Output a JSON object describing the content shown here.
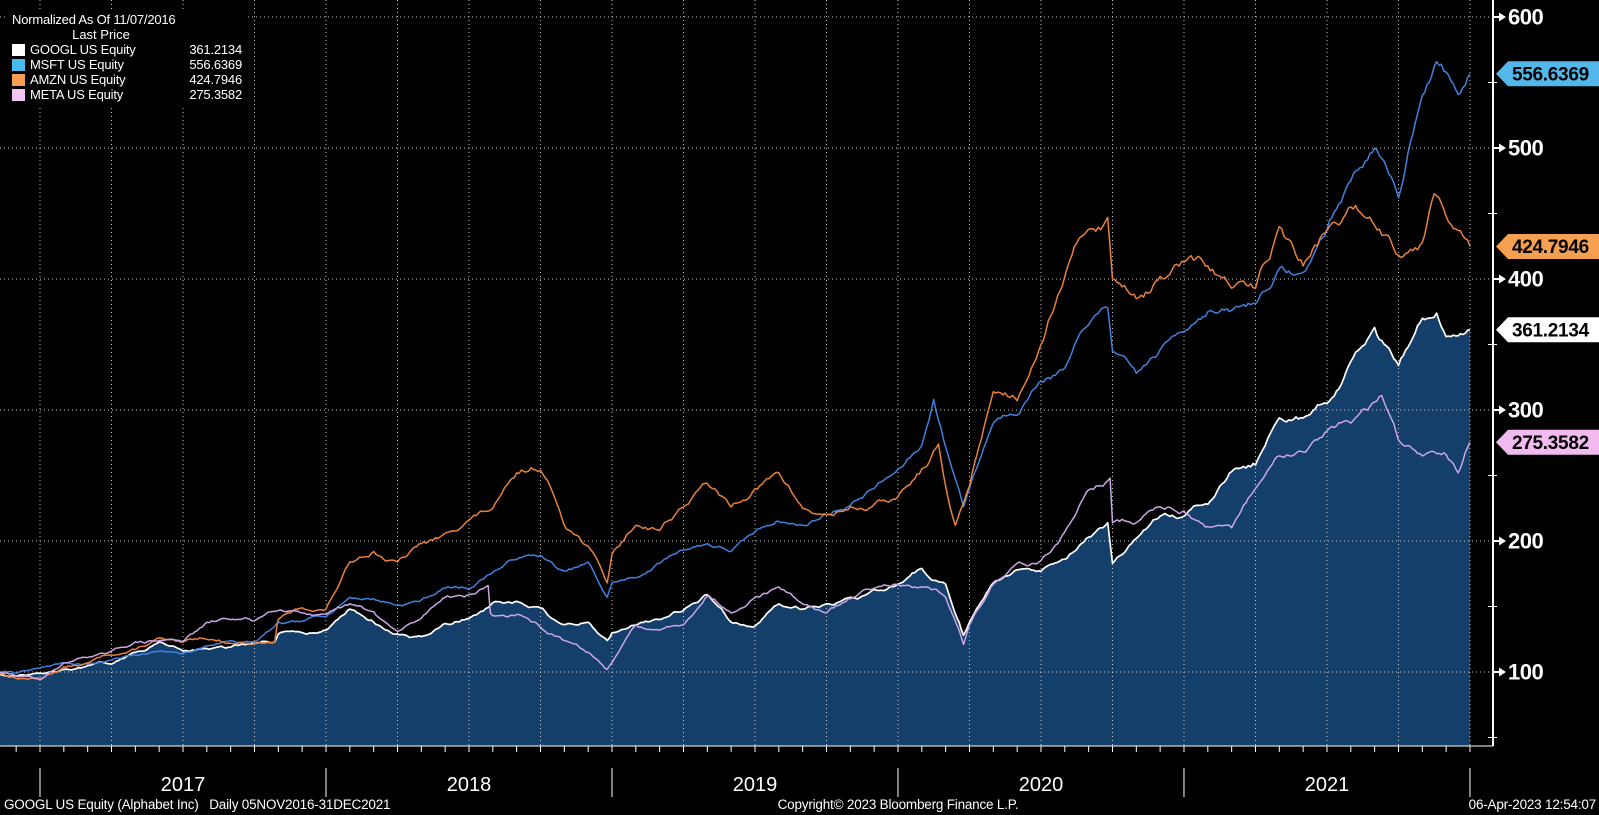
{
  "legend": {
    "title": "Normalized As Of 11/07/2016",
    "subtitle": "Last Price",
    "items": [
      {
        "name": "GOOGL US Equity",
        "value": "361.2134",
        "swatch": "#ffffff"
      },
      {
        "name": "MSFT US Equity",
        "value": "556.6369",
        "swatch": "#45bbee"
      },
      {
        "name": "AMZN US Equity",
        "value": "424.7946",
        "swatch": "#f59e53"
      },
      {
        "name": "META US Equity",
        "value": "275.3582",
        "swatch": "#f1c5f1"
      }
    ]
  },
  "footer": {
    "left": "GOOGL US Equity (Alphabet Inc)   Daily 05NOV2016-31DEC2021",
    "center": "Copyright© 2023 Bloomberg Finance L.P.",
    "right": "06-Apr-2023 12:54:07"
  },
  "chart_data": {
    "type": "line",
    "title": "Normalized As Of 11/07/2016 - Last Price",
    "x_unit": "months since 01NOV2016; data span 05NOV2016-31DEC2021",
    "x_axis": {
      "years": [
        "2017",
        "2018",
        "2019",
        "2020",
        "2021"
      ],
      "range": [
        "05NOV2016",
        "31DEC2021"
      ],
      "quarterly_gridlines": true
    },
    "y_axis": {
      "ticks": [
        600,
        500,
        400,
        300,
        200,
        100
      ],
      "minor_step": 50,
      "base": 100,
      "grid": "dotted"
    },
    "colors": {
      "background": "#000000",
      "grid": "#e8e8e8",
      "googl_fill": "#143f6a"
    },
    "series": [
      {
        "name": "GOOGL US Equity",
        "last": 361.2134,
        "last_label": "361.2134",
        "line_color": "#ffffff",
        "badge_color": "#ffffff",
        "filled": true,
        "seed": 20,
        "amp": 0.0075,
        "points": [
          [
            0.15,
            100
          ],
          [
            1,
            97
          ],
          [
            2,
            99
          ],
          [
            3,
            102
          ],
          [
            4,
            105
          ],
          [
            5,
            106
          ],
          [
            6,
            115
          ],
          [
            7,
            123
          ],
          [
            8,
            116
          ],
          [
            9,
            118
          ],
          [
            10,
            119
          ],
          [
            11,
            122
          ],
          [
            11.85,
            123
          ],
          [
            12,
            129
          ],
          [
            13,
            130
          ],
          [
            14,
            132
          ],
          [
            15,
            148
          ],
          [
            16,
            138
          ],
          [
            17,
            129
          ],
          [
            18,
            127
          ],
          [
            19,
            137
          ],
          [
            20,
            141
          ],
          [
            21,
            153
          ],
          [
            22,
            154
          ],
          [
            23,
            149
          ],
          [
            24,
            136
          ],
          [
            25,
            138
          ],
          [
            25.8,
            124
          ],
          [
            26,
            130
          ],
          [
            27,
            136
          ],
          [
            28,
            140
          ],
          [
            29,
            147
          ],
          [
            30,
            159
          ],
          [
            31,
            138
          ],
          [
            32,
            135
          ],
          [
            33,
            152
          ],
          [
            34,
            148
          ],
          [
            35,
            152
          ],
          [
            36,
            157
          ],
          [
            37,
            163
          ],
          [
            38,
            167
          ],
          [
            39,
            179
          ],
          [
            40,
            167
          ],
          [
            40.75,
            128
          ],
          [
            41,
            138
          ],
          [
            42,
            168
          ],
          [
            43,
            178
          ],
          [
            44,
            177
          ],
          [
            45,
            186
          ],
          [
            46,
            203
          ],
          [
            46.8,
            214
          ],
          [
            47,
            183
          ],
          [
            48,
            202
          ],
          [
            49,
            219
          ],
          [
            50,
            219
          ],
          [
            51,
            228
          ],
          [
            52,
            253
          ],
          [
            53,
            258
          ],
          [
            54,
            294
          ],
          [
            55,
            294
          ],
          [
            56,
            305
          ],
          [
            57,
            337
          ],
          [
            58,
            363
          ],
          [
            59,
            334
          ],
          [
            60,
            370
          ],
          [
            60.6,
            374
          ],
          [
            61,
            356
          ],
          [
            62,
            361.2134
          ]
        ]
      },
      {
        "name": "MSFT US Equity",
        "last": 556.6369,
        "last_label": "556.6369",
        "line_color": "#4181dd",
        "badge_color": "#53b7ea",
        "filled": false,
        "seed": 7,
        "amp": 0.006,
        "points": [
          [
            0.15,
            100
          ],
          [
            1,
            99
          ],
          [
            2,
            103
          ],
          [
            3,
            107
          ],
          [
            4,
            106
          ],
          [
            5,
            109
          ],
          [
            6,
            113
          ],
          [
            7,
            116
          ],
          [
            8,
            114
          ],
          [
            9,
            120
          ],
          [
            10,
            124
          ],
          [
            11,
            123
          ],
          [
            12,
            138
          ],
          [
            13,
            139
          ],
          [
            14,
            142
          ],
          [
            15,
            157
          ],
          [
            16,
            156
          ],
          [
            17,
            151
          ],
          [
            18,
            155
          ],
          [
            19,
            164
          ],
          [
            20,
            163
          ],
          [
            21,
            176
          ],
          [
            22,
            186
          ],
          [
            23,
            189
          ],
          [
            24,
            177
          ],
          [
            25,
            184
          ],
          [
            25.8,
            157
          ],
          [
            26,
            168
          ],
          [
            27,
            172
          ],
          [
            28,
            183
          ],
          [
            29,
            193
          ],
          [
            30,
            198
          ],
          [
            31,
            192
          ],
          [
            32,
            207
          ],
          [
            33,
            215
          ],
          [
            34,
            212
          ],
          [
            35,
            220
          ],
          [
            36,
            227
          ],
          [
            37,
            240
          ],
          [
            38,
            255
          ],
          [
            39,
            273
          ],
          [
            39.5,
            308
          ],
          [
            40,
            272
          ],
          [
            40.75,
            226
          ],
          [
            41,
            240
          ],
          [
            42,
            290
          ],
          [
            43,
            296
          ],
          [
            44,
            322
          ],
          [
            45,
            332
          ],
          [
            46,
            365
          ],
          [
            46.8,
            378
          ],
          [
            47,
            345
          ],
          [
            48,
            328
          ],
          [
            49,
            346
          ],
          [
            50,
            360
          ],
          [
            51,
            375
          ],
          [
            52,
            376
          ],
          [
            53,
            381
          ],
          [
            54,
            408
          ],
          [
            55,
            405
          ],
          [
            56,
            438
          ],
          [
            57,
            475
          ],
          [
            58,
            500
          ],
          [
            59,
            462
          ],
          [
            60,
            540
          ],
          [
            60.6,
            566
          ],
          [
            61,
            558
          ],
          [
            61.5,
            541
          ],
          [
            62,
            556.6369
          ]
        ]
      },
      {
        "name": "AMZN US Equity",
        "last": 424.7946,
        "last_label": "424.7946",
        "line_color": "#e8813c",
        "badge_color": "#f5a050",
        "filled": false,
        "seed": 13,
        "amp": 0.008,
        "points": [
          [
            0.15,
            100
          ],
          [
            1,
            95
          ],
          [
            2,
            95
          ],
          [
            3,
            104
          ],
          [
            4,
            107
          ],
          [
            5,
            113
          ],
          [
            6,
            117
          ],
          [
            7,
            126
          ],
          [
            8,
            123
          ],
          [
            9,
            125
          ],
          [
            10,
            122
          ],
          [
            11,
            122
          ],
          [
            11.85,
            123
          ],
          [
            11.95,
            136
          ],
          [
            12,
            140
          ],
          [
            13,
            149
          ],
          [
            14,
            148
          ],
          [
            15,
            184
          ],
          [
            16,
            192
          ],
          [
            17,
            184
          ],
          [
            18,
            198
          ],
          [
            19,
            206
          ],
          [
            20,
            216
          ],
          [
            21,
            225
          ],
          [
            22,
            252
          ],
          [
            23,
            254
          ],
          [
            24,
            212
          ],
          [
            25,
            196
          ],
          [
            25.8,
            168
          ],
          [
            26,
            190
          ],
          [
            27,
            212
          ],
          [
            28,
            208
          ],
          [
            29,
            226
          ],
          [
            30,
            244
          ],
          [
            31,
            226
          ],
          [
            32,
            240
          ],
          [
            33,
            252
          ],
          [
            34,
            225
          ],
          [
            35,
            220
          ],
          [
            36,
            226
          ],
          [
            37,
            228
          ],
          [
            38,
            234
          ],
          [
            39,
            255
          ],
          [
            39.7,
            274
          ],
          [
            40,
            242
          ],
          [
            40.4,
            212
          ],
          [
            41,
            242
          ],
          [
            42,
            314
          ],
          [
            43,
            307
          ],
          [
            44,
            350
          ],
          [
            45,
            402
          ],
          [
            46,
            438
          ],
          [
            46.8,
            447
          ],
          [
            47,
            400
          ],
          [
            48,
            385
          ],
          [
            49,
            402
          ],
          [
            50,
            413
          ],
          [
            51,
            410
          ],
          [
            52,
            393
          ],
          [
            53,
            393
          ],
          [
            54,
            440
          ],
          [
            55,
            410
          ],
          [
            56,
            437
          ],
          [
            57,
            455
          ],
          [
            58,
            441
          ],
          [
            59,
            418
          ],
          [
            60,
            428
          ],
          [
            60.5,
            465
          ],
          [
            61,
            448
          ],
          [
            62,
            424.7946
          ]
        ]
      },
      {
        "name": "META US Equity",
        "last": 275.3582,
        "last_label": "275.3582",
        "line_color": "#cba5e5",
        "badge_color": "#f1bbf0",
        "filled": false,
        "seed": 29,
        "amp": 0.0075,
        "points": [
          [
            0.15,
            100
          ],
          [
            1,
            97
          ],
          [
            2,
            94
          ],
          [
            3,
            107
          ],
          [
            4,
            111
          ],
          [
            5,
            116
          ],
          [
            6,
            123
          ],
          [
            7,
            124
          ],
          [
            8,
            123
          ],
          [
            9,
            138
          ],
          [
            10,
            140
          ],
          [
            11,
            139
          ],
          [
            12,
            147
          ],
          [
            13,
            145
          ],
          [
            14,
            144
          ],
          [
            15,
            152
          ],
          [
            16,
            146
          ],
          [
            17,
            131
          ],
          [
            18,
            141
          ],
          [
            19,
            157
          ],
          [
            20,
            159
          ],
          [
            20.8,
            166
          ],
          [
            20.9,
            145
          ],
          [
            21,
            143
          ],
          [
            22,
            144
          ],
          [
            23,
            134
          ],
          [
            24,
            124
          ],
          [
            25,
            115
          ],
          [
            25.8,
            102
          ],
          [
            26,
            107
          ],
          [
            27,
            136
          ],
          [
            28,
            132
          ],
          [
            29,
            136
          ],
          [
            30,
            158
          ],
          [
            31,
            145
          ],
          [
            32,
            157
          ],
          [
            33,
            165
          ],
          [
            34,
            152
          ],
          [
            35,
            145
          ],
          [
            36,
            156
          ],
          [
            37,
            164
          ],
          [
            38,
            167
          ],
          [
            39,
            165
          ],
          [
            40,
            157
          ],
          [
            40.75,
            121
          ],
          [
            41,
            136
          ],
          [
            42,
            167
          ],
          [
            43,
            183
          ],
          [
            44,
            185
          ],
          [
            45,
            207
          ],
          [
            46,
            239
          ],
          [
            46.9,
            248
          ],
          [
            47,
            214
          ],
          [
            48,
            214
          ],
          [
            49,
            226
          ],
          [
            50,
            223
          ],
          [
            51,
            211
          ],
          [
            52,
            210
          ],
          [
            53,
            240
          ],
          [
            54,
            265
          ],
          [
            55,
            268
          ],
          [
            56,
            284
          ],
          [
            57,
            290
          ],
          [
            58,
            306
          ],
          [
            58.3,
            311
          ],
          [
            59,
            277
          ],
          [
            60,
            265
          ],
          [
            61,
            266
          ],
          [
            61.5,
            252
          ],
          [
            62,
            275.3582
          ]
        ]
      }
    ]
  }
}
